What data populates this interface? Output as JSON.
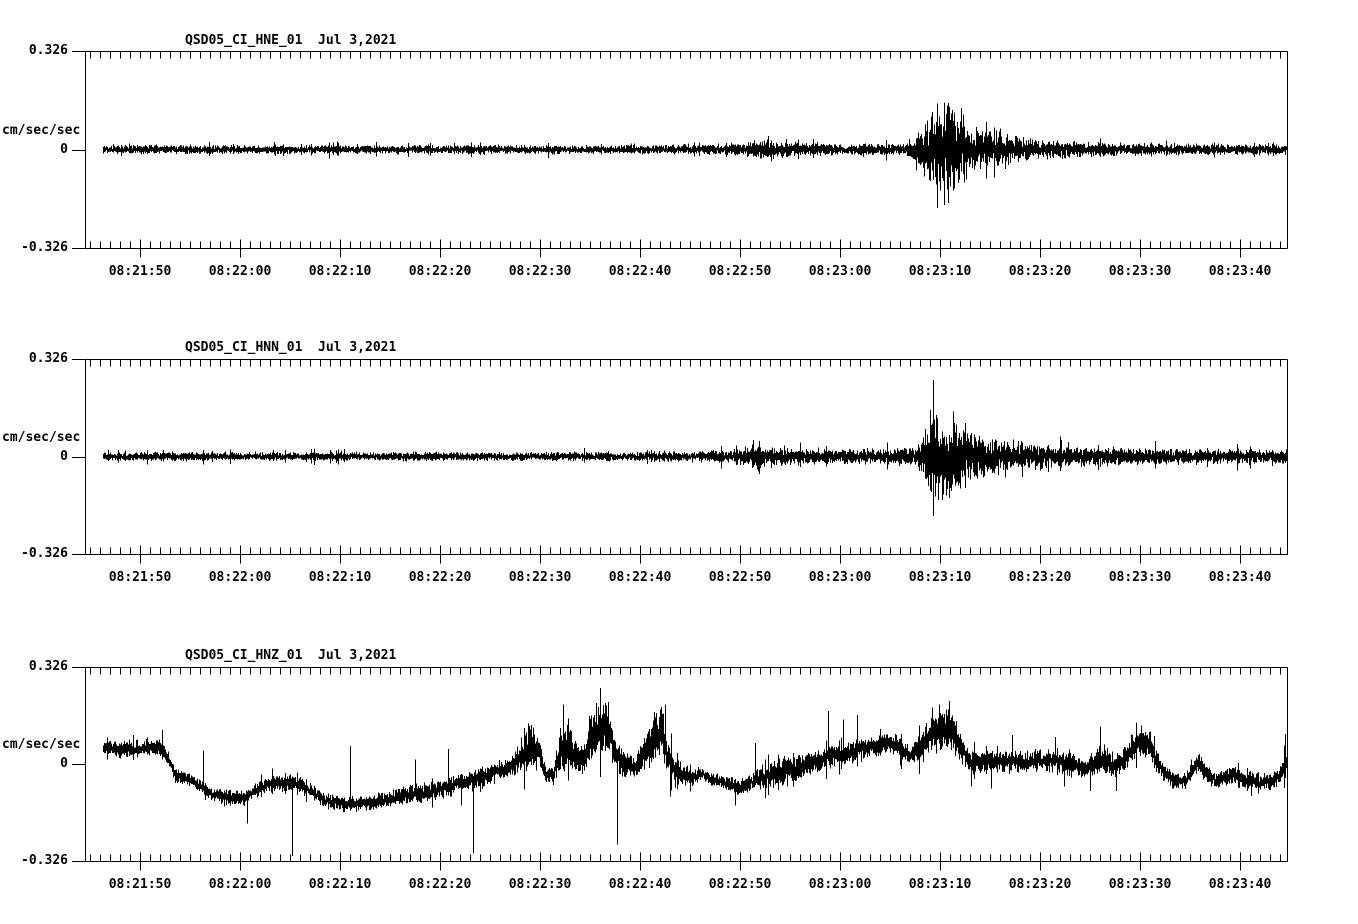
{
  "page": {
    "background": "#ffffff",
    "ink": "#000000"
  },
  "chart_data": [
    {
      "type": "line",
      "title": "QSD05_CI_HNE_01  Jul 3,2021",
      "ylabel": "cm/sec/sec",
      "yticks": [
        "0.326",
        "0",
        "-0.326"
      ],
      "ylim": [
        -0.326,
        0.326
      ],
      "x_tick_labels": [
        "08:21:50",
        "08:22:00",
        "08:22:10",
        "08:22:20",
        "08:22:30",
        "08:22:40",
        "08:22:50",
        "08:23:00",
        "08:23:10",
        "08:23:20",
        "08:23:30",
        "08:23:40"
      ],
      "x_tick_interval_seconds": 10,
      "x_minor_tick_interval_seconds": 1,
      "grid": false,
      "envelope": [
        [
          1.8,
          0,
          0.013
        ],
        [
          55,
          0,
          0.013
        ],
        [
          63,
          0,
          0.015
        ],
        [
          66,
          0,
          0.022
        ],
        [
          68,
          0,
          0.032
        ],
        [
          69.5,
          0,
          0.024
        ],
        [
          72,
          0,
          0.018
        ],
        [
          78,
          0,
          0.016
        ],
        [
          82,
          0,
          0.016
        ],
        [
          83,
          0,
          0.05
        ],
        [
          84,
          0,
          0.09
        ],
        [
          85,
          0,
          0.105
        ],
        [
          86,
          0,
          0.115
        ],
        [
          87.5,
          0,
          0.115
        ],
        [
          88.5,
          0,
          0.085
        ],
        [
          90,
          0,
          0.06
        ],
        [
          91.5,
          0,
          0.05
        ],
        [
          93,
          0,
          0.038
        ],
        [
          95,
          0,
          0.03
        ],
        [
          97,
          0,
          0.026
        ],
        [
          100,
          0,
          0.022
        ],
        [
          104,
          0,
          0.018
        ],
        [
          110,
          0,
          0.016
        ],
        [
          120.2,
          0,
          0.015
        ]
      ],
      "spikes": [
        [
          68.3,
          0.045
        ],
        [
          68.6,
          -0.04
        ],
        [
          84.6,
          0.11
        ],
        [
          85.8,
          -0.105
        ],
        [
          86.9,
          0.123
        ],
        [
          87.4,
          -0.1
        ],
        [
          91.5,
          0.07
        ],
        [
          92,
          -0.065
        ]
      ]
    },
    {
      "type": "line",
      "title": "QSD05_CI_HNN_01  Jul 3,2021",
      "ylabel": "cm/sec/sec",
      "yticks": [
        "0.326",
        "0",
        "-0.326"
      ],
      "ylim": [
        -0.326,
        0.326
      ],
      "x_tick_labels": [
        "08:21:50",
        "08:22:00",
        "08:22:10",
        "08:22:20",
        "08:22:30",
        "08:22:40",
        "08:22:50",
        "08:23:00",
        "08:23:10",
        "08:23:20",
        "08:23:30",
        "08:23:40"
      ],
      "x_tick_interval_seconds": 10,
      "x_minor_tick_interval_seconds": 1,
      "grid": false,
      "envelope": [
        [
          1.8,
          0,
          0.013
        ],
        [
          40,
          0,
          0.013
        ],
        [
          55,
          0,
          0.014
        ],
        [
          60,
          0,
          0.016
        ],
        [
          64,
          0,
          0.018
        ],
        [
          66,
          0,
          0.03
        ],
        [
          67.5,
          0,
          0.038
        ],
        [
          69,
          0,
          0.03
        ],
        [
          71,
          0,
          0.024
        ],
        [
          74,
          0,
          0.022
        ],
        [
          78,
          0,
          0.022
        ],
        [
          81,
          0,
          0.024
        ],
        [
          83,
          0,
          0.03
        ],
        [
          83.8,
          0,
          0.07
        ],
        [
          84.5,
          0,
          0.12
        ],
        [
          85.5,
          0,
          0.13
        ],
        [
          86.5,
          0,
          0.12
        ],
        [
          87.5,
          0,
          0.09
        ],
        [
          89,
          0,
          0.07
        ],
        [
          91,
          0,
          0.055
        ],
        [
          93,
          0,
          0.045
        ],
        [
          95,
          0,
          0.038
        ],
        [
          98,
          0,
          0.032
        ],
        [
          102,
          0,
          0.027
        ],
        [
          106,
          0,
          0.024
        ],
        [
          112,
          0,
          0.022
        ],
        [
          120.2,
          0,
          0.02
        ]
      ],
      "spikes": [
        [
          66.8,
          0.055
        ],
        [
          67.3,
          -0.05
        ],
        [
          84.5,
          0.155
        ],
        [
          85.3,
          -0.145
        ],
        [
          86.1,
          -0.13
        ],
        [
          86.8,
          0.15
        ],
        [
          92,
          -0.07
        ]
      ]
    },
    {
      "type": "line",
      "title": "QSD05_CI_HNZ_01  Jul 3,2021",
      "ylabel": "cm/sec/sec",
      "yticks": [
        "0.326",
        "0",
        "-0.326"
      ],
      "ylim": [
        -0.326,
        0.326
      ],
      "x_tick_labels": [
        "08:21:50",
        "08:22:00",
        "08:22:10",
        "08:22:20",
        "08:22:30",
        "08:22:40",
        "08:22:50",
        "08:23:00",
        "08:23:10",
        "08:23:20",
        "08:23:30",
        "08:23:40"
      ],
      "x_tick_interval_seconds": 10,
      "x_minor_tick_interval_seconds": 1,
      "grid": false,
      "envelope": [
        [
          1.8,
          0.054,
          0.022
        ],
        [
          4,
          0.048,
          0.026
        ],
        [
          6,
          0.056,
          0.022
        ],
        [
          7.5,
          0.052,
          0.028
        ],
        [
          8.3,
          0.02,
          0.025
        ],
        [
          9,
          -0.04,
          0.022
        ],
        [
          10.5,
          -0.05,
          0.02
        ],
        [
          11.5,
          -0.075,
          0.02
        ],
        [
          12.5,
          -0.1,
          0.02
        ],
        [
          14,
          -0.11,
          0.022
        ],
        [
          16,
          -0.115,
          0.022
        ],
        [
          17.5,
          -0.08,
          0.024
        ],
        [
          19,
          -0.062,
          0.026
        ],
        [
          21,
          -0.065,
          0.024
        ],
        [
          22.5,
          -0.09,
          0.022
        ],
        [
          24,
          -0.125,
          0.022
        ],
        [
          26,
          -0.135,
          0.022
        ],
        [
          28,
          -0.13,
          0.024
        ],
        [
          30,
          -0.122,
          0.025
        ],
        [
          32,
          -0.105,
          0.028
        ],
        [
          33.5,
          -0.1,
          0.03
        ],
        [
          35,
          -0.088,
          0.03
        ],
        [
          36.5,
          -0.075,
          0.03
        ],
        [
          38,
          -0.06,
          0.03
        ],
        [
          39.5,
          -0.048,
          0.03
        ],
        [
          41,
          -0.025,
          0.028
        ],
        [
          42.5,
          -0.015,
          0.028
        ],
        [
          43.5,
          0.02,
          0.05
        ],
        [
          44.5,
          0.055,
          0.075
        ],
        [
          45.3,
          0.04,
          0.06
        ],
        [
          46,
          -0.035,
          0.028
        ],
        [
          46.8,
          -0.04,
          0.03
        ],
        [
          47.5,
          0.05,
          0.07
        ],
        [
          48.3,
          0.06,
          0.065
        ],
        [
          49,
          0.015,
          0.05
        ],
        [
          49.8,
          0.02,
          0.05
        ],
        [
          50.5,
          0.08,
          0.08
        ],
        [
          51.5,
          0.125,
          0.085
        ],
        [
          52.3,
          0.12,
          0.08
        ],
        [
          53,
          0.03,
          0.05
        ],
        [
          54,
          -0.005,
          0.035
        ],
        [
          55,
          -0.01,
          0.032
        ],
        [
          55.8,
          0.03,
          0.05
        ],
        [
          56.8,
          0.09,
          0.08
        ],
        [
          57.6,
          0.11,
          0.082
        ],
        [
          58.3,
          0.02,
          0.05
        ],
        [
          59,
          -0.03,
          0.045
        ],
        [
          60,
          -0.04,
          0.035
        ],
        [
          60.8,
          -0.045,
          0.022
        ],
        [
          61.5,
          -0.03,
          0.022
        ],
        [
          62.5,
          -0.05,
          0.02
        ],
        [
          63.5,
          -0.058,
          0.02
        ],
        [
          64.5,
          -0.07,
          0.022
        ],
        [
          65.5,
          -0.078,
          0.024
        ],
        [
          66.5,
          -0.065,
          0.028
        ],
        [
          67.2,
          -0.05,
          0.035
        ],
        [
          68,
          -0.045,
          0.038
        ],
        [
          69,
          -0.03,
          0.042
        ],
        [
          70,
          -0.02,
          0.045
        ],
        [
          71,
          -0.022,
          0.042
        ],
        [
          72,
          -0.005,
          0.04
        ],
        [
          73,
          0.01,
          0.036
        ],
        [
          74,
          0.02,
          0.035
        ],
        [
          75,
          0.03,
          0.035
        ],
        [
          76,
          0.035,
          0.035
        ],
        [
          77,
          0.045,
          0.032
        ],
        [
          78,
          0.055,
          0.03
        ],
        [
          79,
          0.06,
          0.03
        ],
        [
          80,
          0.068,
          0.03
        ],
        [
          81,
          0.065,
          0.032
        ],
        [
          81.8,
          0.04,
          0.032
        ],
        [
          82.5,
          0.03,
          0.03
        ],
        [
          83.2,
          0.045,
          0.04
        ],
        [
          84,
          0.08,
          0.055
        ],
        [
          85,
          0.105,
          0.06
        ],
        [
          86,
          0.125,
          0.065
        ],
        [
          86.8,
          0.11,
          0.06
        ],
        [
          87.5,
          0.055,
          0.05
        ],
        [
          88.2,
          0.02,
          0.042
        ],
        [
          89,
          0.005,
          0.038
        ],
        [
          90,
          0.008,
          0.032
        ],
        [
          91,
          0.012,
          0.03
        ],
        [
          92.5,
          0.008,
          0.03
        ],
        [
          94,
          0.005,
          0.032
        ],
        [
          95.5,
          0.012,
          0.033
        ],
        [
          97,
          0.01,
          0.034
        ],
        [
          98.5,
          -0.002,
          0.034
        ],
        [
          100,
          -0.012,
          0.033
        ],
        [
          101,
          0.005,
          0.045
        ],
        [
          101.8,
          0.015,
          0.045
        ],
        [
          102.5,
          -0.005,
          0.04
        ],
        [
          103.5,
          -0.002,
          0.038
        ],
        [
          104.5,
          0.05,
          0.045
        ],
        [
          105.5,
          0.068,
          0.045
        ],
        [
          106.5,
          0.06,
          0.042
        ],
        [
          107.3,
          0,
          0.038
        ],
        [
          108,
          -0.035,
          0.03
        ],
        [
          109,
          -0.055,
          0.025
        ],
        [
          110,
          -0.058,
          0.024
        ],
        [
          110.8,
          -0.01,
          0.032
        ],
        [
          111.3,
          0.012,
          0.032
        ],
        [
          112,
          -0.03,
          0.026
        ],
        [
          113,
          -0.055,
          0.024
        ],
        [
          114,
          -0.042,
          0.028
        ],
        [
          114.8,
          -0.035,
          0.028
        ],
        [
          115.5,
          -0.05,
          0.026
        ],
        [
          116.5,
          -0.055,
          0.026
        ],
        [
          117.5,
          -0.062,
          0.026
        ],
        [
          118.5,
          -0.058,
          0.027
        ],
        [
          119.5,
          -0.04,
          0.03
        ],
        [
          120.2,
          0,
          0.045
        ]
      ],
      "spikes": [
        [
          7.7,
          0.115
        ],
        [
          11.8,
          0.046
        ],
        [
          16.2,
          -0.2
        ],
        [
          20.7,
          -0.31
        ],
        [
          26.5,
          0.06
        ],
        [
          33,
          0.015
        ],
        [
          36.3,
          0.05
        ],
        [
          37.6,
          -0.14
        ],
        [
          38.8,
          -0.3
        ],
        [
          47.8,
          0.2
        ],
        [
          53.2,
          -0.27
        ],
        [
          58,
          0.2
        ],
        [
          58.5,
          -0.11
        ],
        [
          65,
          -0.14
        ],
        [
          67,
          0.07
        ],
        [
          74.3,
          0.178
        ],
        [
          75.8,
          0.15
        ],
        [
          77.2,
          0.165
        ],
        [
          84.7,
          0.19
        ],
        [
          85.4,
          0.2
        ],
        [
          86.4,
          0.212
        ],
        [
          88.6,
          -0.075
        ],
        [
          90.6,
          -0.082
        ],
        [
          92.7,
          0.098
        ],
        [
          97,
          0.09
        ],
        [
          97.9,
          -0.075
        ],
        [
          100.5,
          -0.09
        ],
        [
          101.5,
          0.126
        ],
        [
          103.1,
          -0.09
        ],
        [
          105.6,
          0.13
        ],
        [
          116.6,
          -0.108
        ],
        [
          120,
          0.1
        ]
      ]
    }
  ]
}
